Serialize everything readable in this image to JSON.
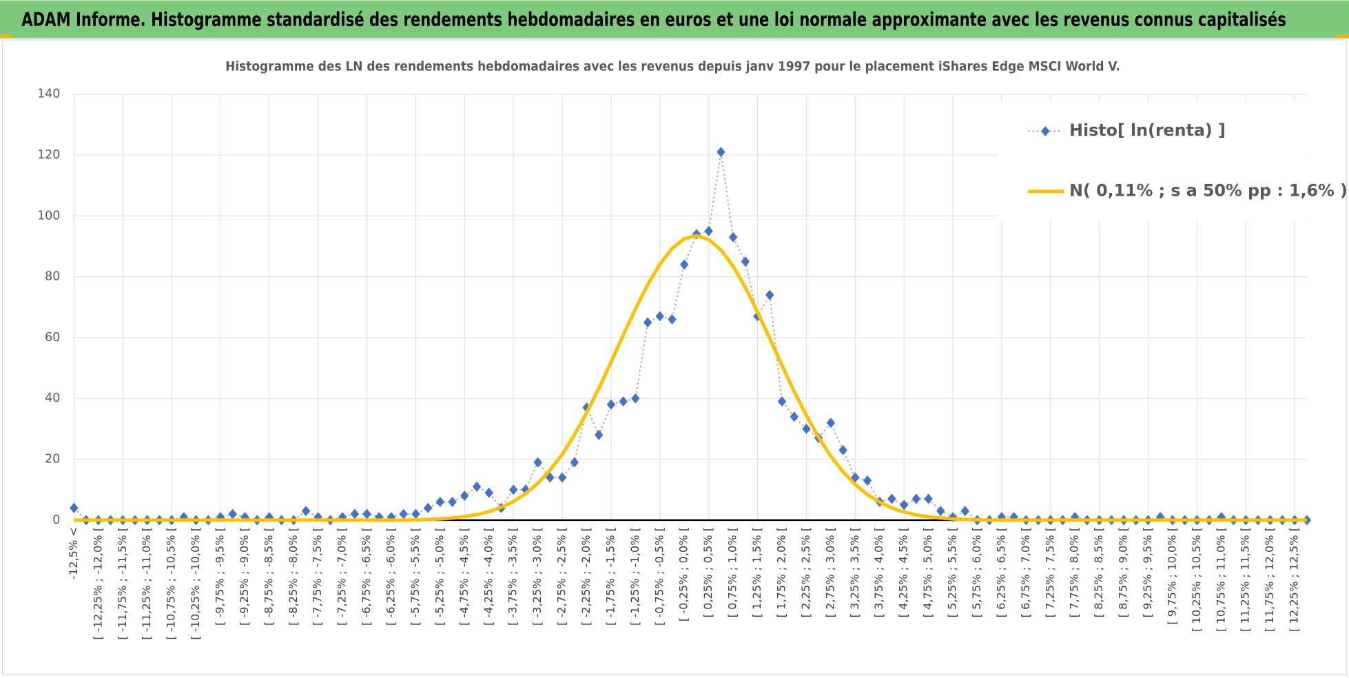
{
  "header": {
    "title": "ADAM Informe. Histogramme standardisé des rendements hebdomadaires en euros et une loi normale approximante avec les revenus connus capitalisés"
  },
  "chart_data": {
    "type": "line",
    "title": "Histogramme des LN des rendements hebdomadaires avec les revenus depuis janv 1997 pour le placement iShares Edge MSCI World V.",
    "categories": [
      "-12,5% <",
      null,
      "[ -12,25% ; -12,0% [",
      null,
      "[ -11,75% ; -11,5% [",
      null,
      "[ -11,25% ; -11,0% [",
      null,
      "[ -10,75% ; -10,5% [",
      null,
      "[ -10,25% ; -10,0% [",
      null,
      "[ -9,75% ; -9,5% [",
      null,
      "[ -9,25% ; -9,0% [",
      null,
      "[ -8,75% ; -8,5% [",
      null,
      "[ -8,25% ; -8,0% [",
      null,
      "[ -7,75% ; -7,5% [",
      null,
      "[ -7,25% ; -7,0% [",
      null,
      "[ -6,75% ; -6,5% [",
      null,
      "[ -6,25% ; -6,0% [",
      null,
      "[ -5,75% ; -5,5% [",
      null,
      "[ -5,25% ; -5,0% [",
      null,
      "[ -4,75% ; -4,5% [",
      null,
      "[ -4,25% ; -4,0% [",
      null,
      "[ -3,75% ; -3,5% [",
      null,
      "[ -3,25% ; -3,0% [",
      null,
      "[ -2,75% ; -2,5% [",
      null,
      "[ -2,25% ; -2,0% [",
      null,
      "[ -1,75% ; -1,5% [",
      null,
      "[ -1,25% ; -1,0% [",
      null,
      "[ -0,75% ; -0,5% [",
      null,
      "[ -0,25% ; 0,0% [",
      null,
      "[ 0,25% ; 0,5% [",
      null,
      "[ 0,75% ; 1,0% [",
      null,
      "[ 1,25% ; 1,5% [",
      null,
      "[ 1,75% ; 2,0% [",
      null,
      "[ 2,25% ; 2,5% [",
      null,
      "[ 2,75% ; 3,0% [",
      null,
      "[ 3,25% ; 3,5% [",
      null,
      "[ 3,75% ; 4,0% [",
      null,
      "[ 4,25% ; 4,5% [",
      null,
      "[ 4,75% ; 5,0% [",
      null,
      "[ 5,25% ; 5,5% [",
      null,
      "[ 5,75% ; 6,0% [",
      null,
      "[ 6,25% ; 6,5% [",
      null,
      "[ 6,75% ; 7,0% [",
      null,
      "[ 7,25% ; 7,5% [",
      null,
      "[ 7,75% ; 8,0% [",
      null,
      "[ 8,25% ; 8,5% [",
      null,
      "[ 8,75% ; 9,0% [",
      null,
      "[ 9,25% ; 9,5% [",
      null,
      "[ 9,75% ; 10,0% [",
      null,
      "[ 10,25% ; 10,5% [",
      null,
      "[ 10,75% ; 11,0% [",
      null,
      "[ 11,25% ; 11,5% [",
      null,
      "[ 11,75% ; 12,0% [",
      null,
      "[ 12,25% ; 12,5% [",
      null
    ],
    "series": [
      {
        "name": "Histo[ ln(renta) ]",
        "color": "#4472c4",
        "values": [
          4,
          0,
          0,
          0,
          0,
          0,
          0,
          0,
          0,
          1,
          0,
          0,
          1,
          2,
          1,
          0,
          1,
          0,
          0,
          3,
          1,
          0,
          1,
          2,
          2,
          1,
          1,
          2,
          2,
          4,
          6,
          6,
          8,
          11,
          9,
          4,
          10,
          10,
          19,
          14,
          14,
          19,
          37,
          28,
          38,
          39,
          40,
          65,
          67,
          66,
          84,
          94,
          95,
          121,
          93,
          85,
          67,
          74,
          39,
          34,
          30,
          27,
          32,
          23,
          14,
          13,
          6,
          7,
          5,
          7,
          7,
          3,
          1,
          3,
          0,
          0,
          1,
          1,
          0,
          0,
          0,
          0,
          1,
          0,
          0,
          0,
          0,
          0,
          0,
          1,
          0,
          0,
          0,
          0,
          1,
          0,
          0,
          0,
          0,
          0,
          0,
          0
        ]
      },
      {
        "name": "N( 0,11% ; s a 50% pp : 1,6% )",
        "color": "#ffc000",
        "values": [
          0,
          0,
          0,
          0,
          0,
          0,
          0,
          0,
          0,
          0,
          0,
          0,
          0,
          0,
          0,
          0,
          0,
          0,
          0,
          0,
          0,
          0,
          0,
          0,
          0,
          0,
          0,
          0,
          0.1,
          0.2,
          0.4,
          0.7,
          1.2,
          1.8,
          2.8,
          4.2,
          6.1,
          8.7,
          12.1,
          16.4,
          21.6,
          28.0,
          35.3,
          43.3,
          51.9,
          60.9,
          69.4,
          77.4,
          84.1,
          89.3,
          92.5,
          93.5,
          92.2,
          88.8,
          83.4,
          76.5,
          68.4,
          59.8,
          50.9,
          42.3,
          34.4,
          27.2,
          21.0,
          15.9,
          11.7,
          8.4,
          5.9,
          4.0,
          2.7,
          1.7,
          1.1,
          0.7,
          0.4,
          0.2,
          0.1,
          0,
          0,
          0,
          0,
          0,
          0,
          0,
          0,
          0,
          0,
          0,
          0,
          0,
          0,
          0,
          0,
          0,
          0,
          0,
          0,
          0,
          0,
          0,
          0,
          0,
          0,
          0
        ]
      }
    ],
    "ylim": [
      0,
      140
    ],
    "yticks": [
      0,
      20,
      40,
      60,
      80,
      100,
      120,
      140
    ],
    "grid": true,
    "legend": "top-right"
  }
}
